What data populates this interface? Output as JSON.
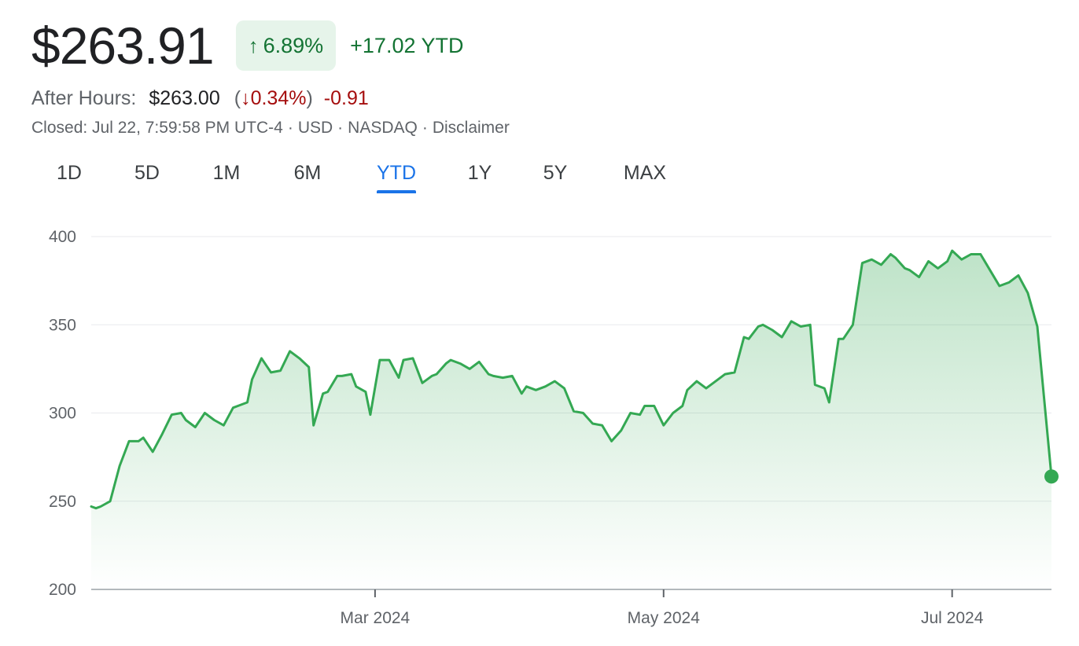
{
  "header": {
    "price": "$263.91",
    "change_pct": "6.89%",
    "change_abs": "+17.02 YTD"
  },
  "after_hours": {
    "label": "After Hours:",
    "price": "$263.00",
    "change_pct": "0.34%",
    "change_abs": "-0.91"
  },
  "meta": {
    "closed": "Closed: Jul 22, 7:59:58 PM UTC-4",
    "currency": "USD",
    "exchange": "NASDAQ",
    "disclaimer": "Disclaimer"
  },
  "tabs": [
    {
      "label": "1D"
    },
    {
      "label": "5D"
    },
    {
      "label": "1M"
    },
    {
      "label": "6M"
    },
    {
      "label": "YTD",
      "active": true
    },
    {
      "label": "1Y"
    },
    {
      "label": "5Y"
    },
    {
      "label": "MAX"
    }
  ],
  "colors": {
    "positive": "#137333",
    "negative": "#a50e0e",
    "line": "#34a853",
    "accent": "#1a73e8"
  },
  "icons": {
    "up": "arrow-up-icon",
    "down": "arrow-down-icon"
  },
  "chart_data": {
    "type": "area",
    "title": "",
    "xlabel": "",
    "ylabel": "",
    "ylim": [
      200,
      400
    ],
    "yticks": [
      200,
      250,
      300,
      350,
      400
    ],
    "xticks": [
      {
        "label": "Mar 2024",
        "date": "2024-03-01"
      },
      {
        "label": "May 2024",
        "date": "2024-05-01"
      },
      {
        "label": "Jul 2024",
        "date": "2024-07-01"
      }
    ],
    "x_range": [
      "2024-01-01",
      "2024-07-22"
    ],
    "grid": "horizontal",
    "series": [
      {
        "x": [
          "2024-01-01",
          "2024-01-02",
          "2024-01-03",
          "2024-01-05",
          "2024-01-07",
          "2024-01-09",
          "2024-01-11",
          "2024-01-12",
          "2024-01-14",
          "2024-01-16",
          "2024-01-18",
          "2024-01-20",
          "2024-01-21",
          "2024-01-23",
          "2024-01-25",
          "2024-01-27",
          "2024-01-29",
          "2024-01-31",
          "2024-02-01",
          "2024-02-03",
          "2024-02-04",
          "2024-02-06",
          "2024-02-08",
          "2024-02-10",
          "2024-02-12",
          "2024-02-14",
          "2024-02-16",
          "2024-02-17",
          "2024-02-19",
          "2024-02-20",
          "2024-02-22",
          "2024-02-23",
          "2024-02-25",
          "2024-02-26",
          "2024-02-28",
          "2024-02-29",
          "2024-03-02",
          "2024-03-04",
          "2024-03-06",
          "2024-03-07",
          "2024-03-09",
          "2024-03-11",
          "2024-03-13",
          "2024-03-14",
          "2024-03-16",
          "2024-03-17",
          "2024-03-19",
          "2024-03-21",
          "2024-03-23",
          "2024-03-25",
          "2024-03-26",
          "2024-03-28",
          "2024-03-30",
          "2024-04-01",
          "2024-04-02",
          "2024-04-04",
          "2024-04-06",
          "2024-04-08",
          "2024-04-10",
          "2024-04-12",
          "2024-04-14",
          "2024-04-16",
          "2024-04-18",
          "2024-04-20",
          "2024-04-22",
          "2024-04-24",
          "2024-04-26",
          "2024-04-27",
          "2024-04-29",
          "2024-05-01",
          "2024-05-03",
          "2024-05-05",
          "2024-05-06",
          "2024-05-08",
          "2024-05-10",
          "2024-05-12",
          "2024-05-14",
          "2024-05-16",
          "2024-05-18",
          "2024-05-19",
          "2024-05-21",
          "2024-05-22",
          "2024-05-24",
          "2024-05-26",
          "2024-05-28",
          "2024-05-30",
          "2024-06-01",
          "2024-06-02",
          "2024-06-04",
          "2024-06-05",
          "2024-06-07",
          "2024-06-08",
          "2024-06-10",
          "2024-06-12",
          "2024-06-14",
          "2024-06-16",
          "2024-06-18",
          "2024-06-19",
          "2024-06-21",
          "2024-06-22",
          "2024-06-24",
          "2024-06-26",
          "2024-06-28",
          "2024-06-30",
          "2024-07-01",
          "2024-07-03",
          "2024-07-05",
          "2024-07-07",
          "2024-07-09",
          "2024-07-11",
          "2024-07-13",
          "2024-07-15",
          "2024-07-17",
          "2024-07-19",
          "2024-07-22"
        ],
        "values": [
          247,
          246,
          247,
          250,
          270,
          284,
          284,
          286,
          278,
          288,
          299,
          300,
          296,
          292,
          300,
          296,
          293,
          303,
          304,
          306,
          319,
          331,
          323,
          324,
          335,
          331,
          326,
          293,
          311,
          312,
          321,
          321,
          322,
          315,
          312,
          299,
          330,
          330,
          320,
          330,
          331,
          317,
          321,
          322,
          328,
          330,
          328,
          325,
          329,
          322,
          321,
          320,
          321,
          311,
          315,
          313,
          315,
          318,
          314,
          301,
          300,
          294,
          293,
          284,
          290,
          300,
          299,
          304,
          304,
          293,
          300,
          304,
          313,
          318,
          314,
          318,
          322,
          323,
          343,
          342,
          349,
          350,
          347,
          343,
          352,
          349,
          350,
          316,
          314,
          306,
          342,
          342,
          350,
          385,
          387,
          384,
          390,
          388,
          382,
          381,
          377,
          386,
          382,
          386,
          392,
          387,
          390,
          390,
          381,
          372,
          374,
          378,
          368,
          349,
          264
        ]
      }
    ],
    "last_point": {
      "date": "2024-07-22",
      "value": 264
    }
  }
}
